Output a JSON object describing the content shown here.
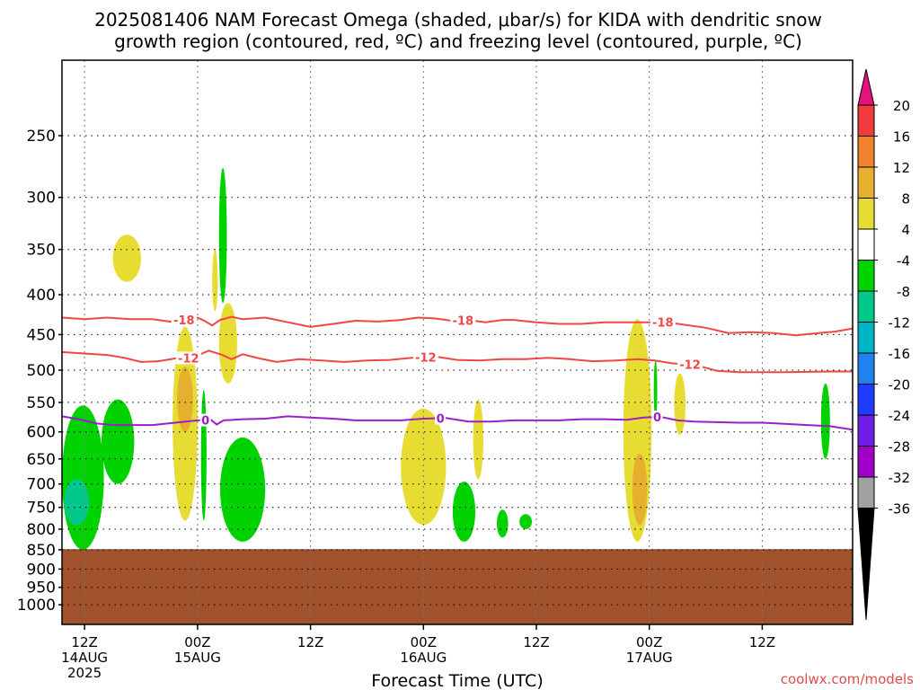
{
  "chart_data": {
    "type": "heatmap",
    "title_line1": "2025081406 NAM Forecast Omega (shaded, μbar/s) for KIDA with dendritic snow",
    "title_line2": "growth region (contoured, red, ºC) and freezing level (contoured, purple, ºC)",
    "xlabel": "Forecast Time (UTC)",
    "watermark": "coolwx.com/models",
    "y_axis": {
      "unit": "hPa",
      "scale": "log",
      "range": [
        200,
        1060
      ],
      "ticks": [
        250,
        300,
        350,
        400,
        450,
        500,
        550,
        600,
        650,
        700,
        750,
        800,
        850,
        900,
        950,
        1000
      ]
    },
    "x_axis": {
      "unit": "forecast hour",
      "range": [
        6,
        76
      ],
      "ticks": [
        {
          "hour": 8,
          "lines": [
            "12Z",
            "14AUG",
            "2025"
          ]
        },
        {
          "hour": 18,
          "lines": [
            "00Z",
            "15AUG"
          ]
        },
        {
          "hour": 28,
          "lines": [
            "12Z"
          ]
        },
        {
          "hour": 38,
          "lines": [
            "00Z",
            "16AUG"
          ]
        },
        {
          "hour": 48,
          "lines": [
            "12Z"
          ]
        },
        {
          "hour": 58,
          "lines": [
            "00Z",
            "17AUG"
          ]
        },
        {
          "hour": 68,
          "lines": [
            "12Z"
          ]
        }
      ]
    },
    "grid": true,
    "surface_pressure_hPa": 850,
    "colorbar": {
      "unit": "μbar/s",
      "labels": [
        20,
        16,
        12,
        8,
        4,
        -4,
        -8,
        -12,
        -16,
        -20,
        -24,
        -28,
        -32,
        -36
      ],
      "bins": [
        {
          "range": [
            16,
            20
          ],
          "color": "#f03c3c"
        },
        {
          "range": [
            12,
            16
          ],
          "color": "#f0822d"
        },
        {
          "range": [
            8,
            12
          ],
          "color": "#e6af2d"
        },
        {
          "range": [
            4,
            8
          ],
          "color": "#e6dc32"
        },
        {
          "range": [
            -4,
            4
          ],
          "color": "#ffffff"
        },
        {
          "range": [
            -8,
            -4
          ],
          "color": "#00d200"
        },
        {
          "range": [
            -12,
            -8
          ],
          "color": "#00c88c"
        },
        {
          "range": [
            -16,
            -12
          ],
          "color": "#00b4c8"
        },
        {
          "range": [
            -20,
            -16
          ],
          "color": "#1e82f0"
        },
        {
          "range": [
            -24,
            -20
          ],
          "color": "#1e3cff"
        },
        {
          "range": [
            -28,
            -24
          ],
          "color": "#6e1ee6"
        },
        {
          "range": [
            -32,
            -28
          ],
          "color": "#a000c8"
        },
        {
          "range": [
            -36,
            -32
          ],
          "color": "#a0a0a0"
        }
      ],
      "above_max_color": "#e6127d",
      "below_min_color": "#000000"
    },
    "colors": {
      "ground": "#a0522d",
      "dgz_contour": "#f04646",
      "freezing_contour": "#9b1ec8",
      "watermark": "#e14b4b"
    },
    "contours": [
      {
        "label": "-18",
        "color_key": "dgz_contour",
        "label_hours": [
          16.8,
          41.5,
          59.2
        ],
        "points": [
          [
            6,
            428
          ],
          [
            8,
            430
          ],
          [
            10,
            428
          ],
          [
            12,
            430
          ],
          [
            14,
            430
          ],
          [
            16,
            434
          ],
          [
            17,
            430
          ],
          [
            18,
            428
          ],
          [
            18.6,
            432
          ],
          [
            19.3,
            438
          ],
          [
            20,
            431
          ],
          [
            21,
            427
          ],
          [
            22,
            430
          ],
          [
            24,
            428
          ],
          [
            26,
            434
          ],
          [
            28,
            440
          ],
          [
            30,
            436
          ],
          [
            32,
            432
          ],
          [
            34,
            433
          ],
          [
            36,
            431
          ],
          [
            37.5,
            428
          ],
          [
            39,
            429
          ],
          [
            40.5,
            432
          ],
          [
            42,
            431
          ],
          [
            43.5,
            434
          ],
          [
            45,
            431
          ],
          [
            46,
            431
          ],
          [
            48,
            434
          ],
          [
            50,
            436
          ],
          [
            52,
            436
          ],
          [
            54,
            434
          ],
          [
            56,
            434
          ],
          [
            58,
            434
          ],
          [
            59.5,
            434
          ],
          [
            61,
            437
          ],
          [
            63,
            441
          ],
          [
            65,
            448
          ],
          [
            67,
            447
          ],
          [
            69,
            448
          ],
          [
            71,
            451
          ],
          [
            73,
            448
          ],
          [
            74.5,
            446
          ],
          [
            76,
            442
          ]
        ]
      },
      {
        "label": "-12",
        "color_key": "dgz_contour",
        "label_hours": [
          17.2,
          38.2,
          61.6
        ],
        "points": [
          [
            6,
            474
          ],
          [
            8,
            476
          ],
          [
            10,
            478
          ],
          [
            11.5,
            482
          ],
          [
            13,
            488
          ],
          [
            14.5,
            487
          ],
          [
            16,
            483
          ],
          [
            17.5,
            482
          ],
          [
            19,
            472
          ],
          [
            20.2,
            478
          ],
          [
            21,
            484
          ],
          [
            22,
            477
          ],
          [
            23.5,
            483
          ],
          [
            25,
            488
          ],
          [
            27,
            484
          ],
          [
            29,
            486
          ],
          [
            31,
            488
          ],
          [
            33,
            486
          ],
          [
            35,
            485
          ],
          [
            37,
            482
          ],
          [
            39,
            480
          ],
          [
            41,
            485
          ],
          [
            43,
            486
          ],
          [
            45,
            484
          ],
          [
            47,
            484
          ],
          [
            49,
            482
          ],
          [
            51,
            484
          ],
          [
            53,
            487
          ],
          [
            55,
            486
          ],
          [
            57,
            484
          ],
          [
            58.5,
            486
          ],
          [
            60,
            490
          ],
          [
            62,
            492
          ],
          [
            64,
            501
          ],
          [
            66,
            503
          ],
          [
            70,
            503
          ],
          [
            74,
            502
          ],
          [
            76,
            502
          ]
        ]
      },
      {
        "label": "0",
        "color_key": "freezing_contour",
        "label_hours": [
          18.7,
          39.5,
          58.7
        ],
        "points": [
          [
            6,
            573
          ],
          [
            7.5,
            578
          ],
          [
            9,
            585
          ],
          [
            10.5,
            588
          ],
          [
            12,
            588
          ],
          [
            14,
            588
          ],
          [
            16,
            584
          ],
          [
            18,
            580
          ],
          [
            19.2,
            579
          ],
          [
            19.7,
            587
          ],
          [
            20.3,
            580
          ],
          [
            22,
            578
          ],
          [
            24,
            577
          ],
          [
            26,
            573
          ],
          [
            28,
            575
          ],
          [
            30,
            577
          ],
          [
            32,
            580
          ],
          [
            34,
            580
          ],
          [
            36,
            580
          ],
          [
            38,
            577
          ],
          [
            40,
            576
          ],
          [
            42,
            582
          ],
          [
            44,
            582
          ],
          [
            46,
            580
          ],
          [
            48,
            580
          ],
          [
            50,
            580
          ],
          [
            52,
            578
          ],
          [
            54,
            578
          ],
          [
            56,
            579
          ],
          [
            57.5,
            575
          ],
          [
            59,
            574
          ],
          [
            60.5,
            580
          ],
          [
            62,
            582
          ],
          [
            64,
            583
          ],
          [
            66,
            584
          ],
          [
            68,
            584
          ],
          [
            70,
            586
          ],
          [
            72,
            588
          ],
          [
            74,
            590
          ],
          [
            76,
            596
          ]
        ]
      }
    ],
    "features": [
      {
        "sign": "down",
        "value_min": -8,
        "value_max": -4,
        "hour_range": [
          6,
          9.7
        ],
        "p_range": [
          555,
          850
        ],
        "shape": "blob"
      },
      {
        "sign": "down",
        "value_min": -12,
        "value_max": -8,
        "hour_range": [
          6.2,
          8.4
        ],
        "p_range": [
          690,
          790
        ],
        "shape": "blob"
      },
      {
        "sign": "down",
        "value_min": -8,
        "value_max": -4,
        "hour_range": [
          9.5,
          12.4
        ],
        "p_range": [
          545,
          700
        ],
        "shape": "blob"
      },
      {
        "sign": "up",
        "value_min": 4,
        "value_max": 8,
        "hour_range": [
          10.5,
          13
        ],
        "p_range": [
          335,
          385
        ],
        "shape": "blob"
      },
      {
        "sign": "up",
        "value_min": 4,
        "value_max": 8,
        "hour_range": [
          15.8,
          18
        ],
        "p_range": [
          440,
          780
        ],
        "shape": "blob"
      },
      {
        "sign": "up",
        "value_min": 8,
        "value_max": 12,
        "hour_range": [
          16.2,
          17.6
        ],
        "p_range": [
          495,
          600
        ],
        "shape": "blob"
      },
      {
        "sign": "down",
        "value_min": -8,
        "value_max": -4,
        "hour_range": [
          18.3,
          18.8
        ],
        "p_range": [
          530,
          780
        ],
        "shape": "blob"
      },
      {
        "sign": "up",
        "value_min": 4,
        "value_max": 8,
        "hour_range": [
          19.3,
          19.8
        ],
        "p_range": [
          350,
          420
        ],
        "shape": "blob"
      },
      {
        "sign": "down",
        "value_min": -8,
        "value_max": -4,
        "hour_range": [
          19.9,
          20.6
        ],
        "p_range": [
          275,
          410
        ],
        "shape": "blob"
      },
      {
        "sign": "up",
        "value_min": 4,
        "value_max": 8,
        "hour_range": [
          19.9,
          21.5
        ],
        "p_range": [
          410,
          520
        ],
        "shape": "blob"
      },
      {
        "sign": "down",
        "value_min": -8,
        "value_max": -4,
        "hour_range": [
          20,
          24
        ],
        "p_range": [
          610,
          830
        ],
        "shape": "blob"
      },
      {
        "sign": "up",
        "value_min": 4,
        "value_max": 8,
        "hour_range": [
          36,
          40
        ],
        "p_range": [
          560,
          790
        ],
        "shape": "blob"
      },
      {
        "sign": "down",
        "value_min": -8,
        "value_max": -4,
        "hour_range": [
          40.6,
          42.6
        ],
        "p_range": [
          695,
          830
        ],
        "shape": "blob"
      },
      {
        "sign": "up",
        "value_min": 4,
        "value_max": 8,
        "hour_range": [
          42.4,
          43.3
        ],
        "p_range": [
          545,
          690
        ],
        "shape": "blob"
      },
      {
        "sign": "down",
        "value_min": -8,
        "value_max": -4,
        "hour_range": [
          44.5,
          45.5
        ],
        "p_range": [
          755,
          820
        ],
        "shape": "blob"
      },
      {
        "sign": "down",
        "value_min": -8,
        "value_max": -4,
        "hour_range": [
          46.5,
          47.6
        ],
        "p_range": [
          765,
          800
        ],
        "shape": "blob"
      },
      {
        "sign": "up",
        "value_min": 4,
        "value_max": 8,
        "hour_range": [
          55.7,
          58.2
        ],
        "p_range": [
          430,
          830
        ],
        "shape": "blob"
      },
      {
        "sign": "up",
        "value_min": 8,
        "value_max": 12,
        "hour_range": [
          56.5,
          57.8
        ],
        "p_range": [
          640,
          790
        ],
        "shape": "blob"
      },
      {
        "sign": "down",
        "value_min": -8,
        "value_max": -4,
        "hour_range": [
          58.4,
          58.7
        ],
        "p_range": [
          485,
          580
        ],
        "shape": "blob"
      },
      {
        "sign": "up",
        "value_min": 4,
        "value_max": 8,
        "hour_range": [
          60.2,
          61.2
        ],
        "p_range": [
          505,
          605
        ],
        "shape": "blob"
      },
      {
        "sign": "down",
        "value_min": -8,
        "value_max": -4,
        "hour_range": [
          73.2,
          74
        ],
        "p_range": [
          520,
          650
        ],
        "shape": "blob"
      }
    ]
  }
}
